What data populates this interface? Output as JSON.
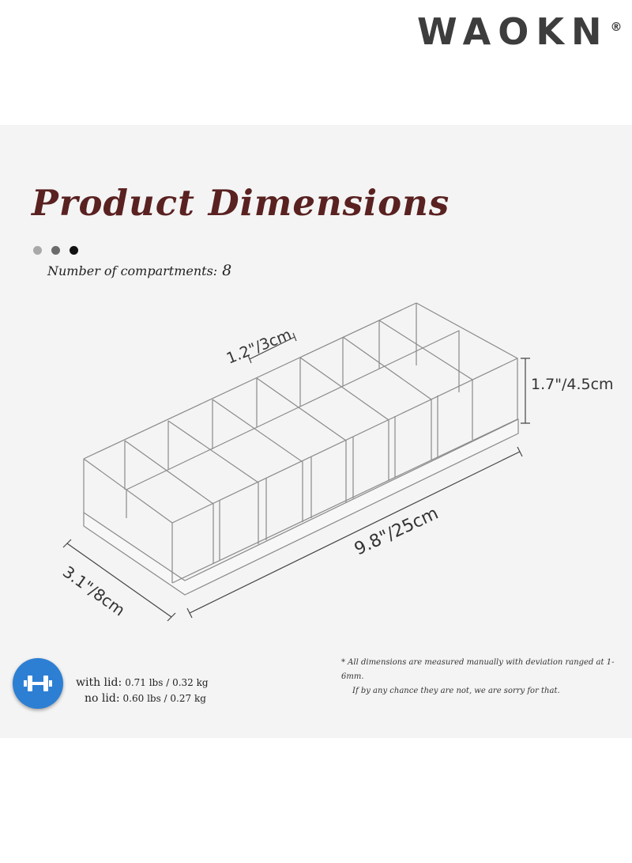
{
  "brand": {
    "name": "WAOKN",
    "mark": "®"
  },
  "title": "Product Dimensions",
  "compartments": {
    "label": "Number of compartments:",
    "value": "8"
  },
  "dimensions": {
    "compartment_width": "1.2\"/3cm",
    "height": "1.7\"/4.5cm",
    "length": "9.8\"/25cm",
    "depth": "3.1\"/8cm"
  },
  "note": {
    "line1": "* All dimensions are measured manually with deviation ranged at 1-6mm.",
    "line2": "If by any chance they are not, we are sorry for that."
  },
  "weights": {
    "with_lid_label": "with lid:",
    "with_lid_value": "0.71 lbs / 0.32 kg",
    "no_lid_label": "no lid:",
    "no_lid_value": "0.60 lbs / 0.27 kg"
  },
  "colors": {
    "title": "#5a2121",
    "icon_bg": "#2d7fd3",
    "panel_bg": "#f4f4f4",
    "brand": "#3d3d3d"
  },
  "icons": {
    "weight": "dumbbell-icon",
    "dots": "progress-dots"
  }
}
